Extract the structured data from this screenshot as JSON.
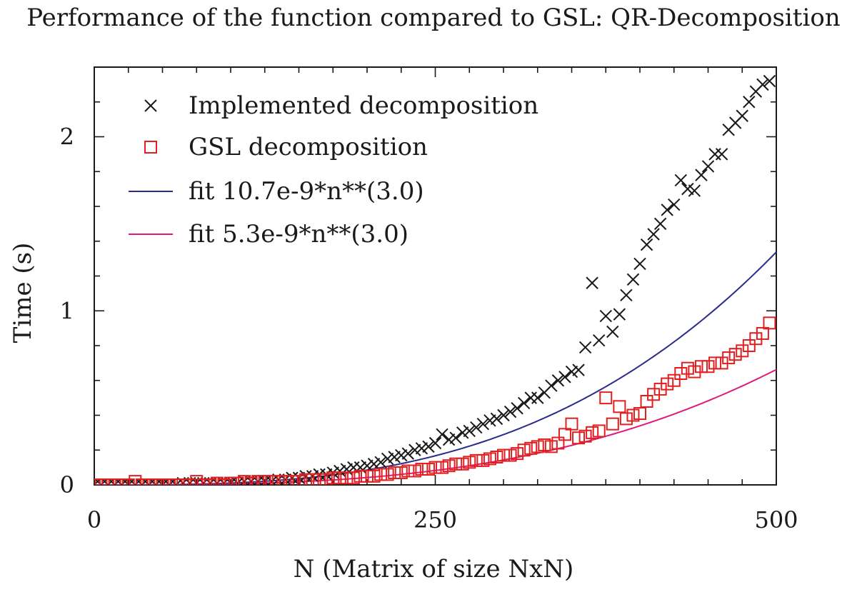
{
  "chart_data": {
    "type": "scatter",
    "title": "Performance of the function compared to GSL: QR-Decomposition",
    "xlabel": "N (Matrix of size NxN)",
    "ylabel": "Time (s)",
    "xlim": [
      0,
      500
    ],
    "ylim": [
      0,
      2.4
    ],
    "x_ticks": [
      0,
      250,
      500
    ],
    "x_tick_labels": [
      "0",
      "250",
      "500"
    ],
    "y_ticks": [
      0,
      1,
      2
    ],
    "y_tick_labels": [
      "0",
      "1",
      "2"
    ],
    "grid": false,
    "legend_position": "top-left",
    "series": [
      {
        "name": "Implemented decomposition",
        "kind": "scatter",
        "marker": "cross",
        "color": "#1a1a1a",
        "x": [
          0,
          5,
          10,
          15,
          20,
          25,
          30,
          35,
          40,
          45,
          50,
          55,
          60,
          65,
          70,
          75,
          80,
          85,
          90,
          95,
          100,
          105,
          110,
          115,
          120,
          125,
          130,
          135,
          140,
          145,
          150,
          155,
          160,
          165,
          170,
          175,
          180,
          185,
          190,
          195,
          200,
          205,
          210,
          215,
          220,
          225,
          230,
          235,
          240,
          245,
          250,
          255,
          260,
          265,
          270,
          275,
          280,
          285,
          290,
          295,
          300,
          305,
          310,
          315,
          320,
          325,
          330,
          335,
          340,
          345,
          350,
          355,
          360,
          365,
          370,
          375,
          380,
          385,
          390,
          395,
          400,
          405,
          410,
          415,
          420,
          425,
          430,
          435,
          440,
          445,
          450,
          455,
          460,
          465,
          470,
          475,
          480,
          485,
          490,
          495
        ],
        "y": [
          0,
          0,
          0,
          0,
          0,
          0,
          0,
          0,
          0,
          0,
          0,
          0,
          0,
          0.01,
          0.01,
          0.01,
          0.01,
          0.01,
          0.01,
          0.01,
          0.01,
          0.01,
          0.02,
          0.02,
          0.02,
          0.02,
          0.02,
          0.03,
          0.03,
          0.04,
          0.04,
          0.05,
          0.05,
          0.06,
          0.06,
          0.07,
          0.08,
          0.09,
          0.1,
          0.1,
          0.11,
          0.12,
          0.13,
          0.15,
          0.16,
          0.17,
          0.18,
          0.2,
          0.21,
          0.22,
          0.24,
          0.29,
          0.26,
          0.27,
          0.3,
          0.31,
          0.33,
          0.35,
          0.37,
          0.38,
          0.4,
          0.42,
          0.44,
          0.47,
          0.5,
          0.5,
          0.53,
          0.57,
          0.6,
          0.62,
          0.65,
          0.66,
          0.79,
          1.16,
          0.83,
          0.97,
          0.88,
          0.98,
          1.09,
          1.18,
          1.27,
          1.38,
          1.44,
          1.5,
          1.58,
          1.61,
          1.75,
          1.7,
          1.69,
          1.78,
          1.83,
          1.9,
          1.9,
          2.04,
          2.08,
          2.12,
          2.2,
          2.26,
          2.3,
          2.32
        ]
      },
      {
        "name": "GSL decomposition",
        "kind": "scatter",
        "marker": "square",
        "color": "#e02020",
        "x": [
          0,
          5,
          10,
          15,
          20,
          25,
          30,
          35,
          40,
          45,
          50,
          55,
          60,
          65,
          70,
          75,
          80,
          85,
          90,
          95,
          100,
          105,
          110,
          115,
          120,
          125,
          130,
          135,
          140,
          145,
          150,
          155,
          160,
          165,
          170,
          175,
          180,
          185,
          190,
          195,
          200,
          205,
          210,
          215,
          220,
          225,
          230,
          235,
          240,
          245,
          250,
          255,
          260,
          265,
          270,
          275,
          280,
          285,
          290,
          295,
          300,
          305,
          310,
          315,
          320,
          325,
          330,
          335,
          340,
          345,
          350,
          355,
          360,
          365,
          370,
          375,
          380,
          385,
          390,
          395,
          400,
          405,
          410,
          415,
          420,
          425,
          430,
          435,
          440,
          445,
          450,
          455,
          460,
          465,
          470,
          475,
          480,
          485,
          490,
          495
        ],
        "y": [
          0,
          0,
          0,
          0,
          0,
          0,
          0.02,
          0,
          0,
          0,
          0,
          0,
          0,
          0,
          0,
          0.02,
          0,
          0,
          0.01,
          0,
          0.01,
          0.01,
          0.02,
          0.01,
          0.02,
          0.02,
          0.02,
          0.02,
          0.02,
          0.02,
          0.02,
          0.03,
          0.03,
          0.03,
          0.03,
          0.04,
          0.04,
          0.04,
          0.04,
          0.05,
          0.05,
          0.05,
          0.06,
          0.06,
          0.07,
          0.07,
          0.08,
          0.08,
          0.09,
          0.09,
          0.1,
          0.1,
          0.11,
          0.12,
          0.12,
          0.13,
          0.14,
          0.14,
          0.15,
          0.16,
          0.17,
          0.17,
          0.18,
          0.2,
          0.21,
          0.22,
          0.23,
          0.22,
          0.24,
          0.29,
          0.35,
          0.27,
          0.28,
          0.3,
          0.31,
          0.5,
          0.35,
          0.45,
          0.38,
          0.4,
          0.41,
          0.48,
          0.52,
          0.55,
          0.58,
          0.6,
          0.64,
          0.67,
          0.65,
          0.68,
          0.68,
          0.7,
          0.7,
          0.73,
          0.75,
          0.77,
          0.8,
          0.84,
          0.87,
          0.93
        ]
      },
      {
        "name": "fit 10.7e-9*n**(3.0)",
        "kind": "line",
        "color": "#2b2b8c",
        "coef": 1.07e-08,
        "exponent": 3.0
      },
      {
        "name": "fit 5.3e-9*n**(3.0)",
        "kind": "line",
        "color": "#e0197a",
        "coef": 5.3e-09,
        "exponent": 3.0
      }
    ]
  }
}
